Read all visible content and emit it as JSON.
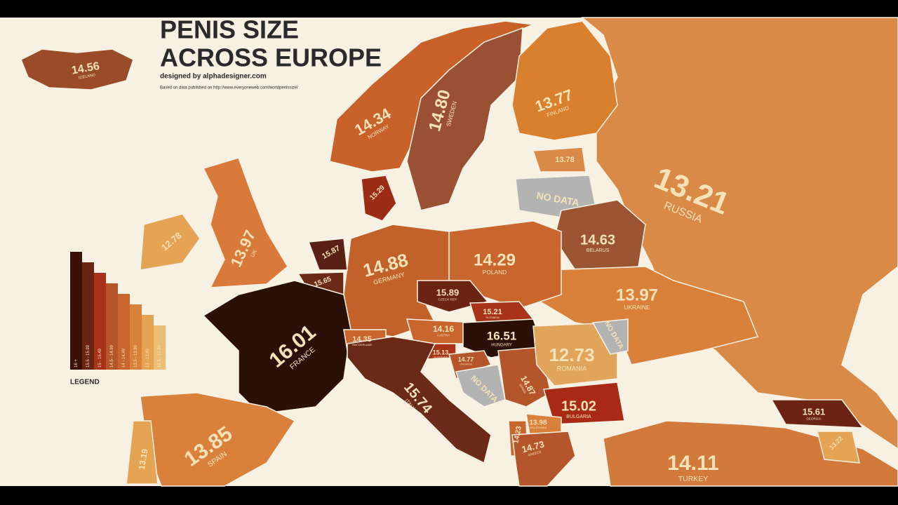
{
  "header": {
    "title_lines": [
      "PENIS SIZE",
      "ACROSS EUROPE"
    ],
    "credit": "designed by alphadesigner.com",
    "source": "Based on data published on http://www.everyoneweb.com/worldpenissize/"
  },
  "legend": {
    "title": "LEGEND",
    "bins": [
      {
        "label": "16 +",
        "color": "#3a1108"
      },
      {
        "label": "15.5 - 15.99",
        "color": "#6b2313"
      },
      {
        "label": "15 - 15.49",
        "color": "#a83319"
      },
      {
        "label": "14.5 - 14.99",
        "color": "#b5552c"
      },
      {
        "label": "14 - 14.49",
        "color": "#c8662e"
      },
      {
        "label": "13.5 - 13.99",
        "color": "#d9813a"
      },
      {
        "label": "13 - 13.49",
        "color": "#e5a354"
      },
      {
        "label": "12.5 - 12.99",
        "color": "#ecbd75"
      }
    ]
  },
  "countries": [
    {
      "value": "13.21",
      "name": "RUSSIA",
      "color": "#d98a47"
    },
    {
      "value": "14.56",
      "name": "ICELAND",
      "color": "#9a4b28"
    },
    {
      "value": "14.34",
      "name": "NORWAY",
      "color": "#c8622a"
    },
    {
      "value": "14.80",
      "name": "SWEDEN",
      "color": "#9a5032"
    },
    {
      "value": "13.77",
      "name": "FINLAND",
      "color": "#d9802f"
    },
    {
      "value": "13.78",
      "color": "#d98a47"
    },
    {
      "value": "NO DATA",
      "color": "#b3b3b3"
    },
    {
      "value": "14.63",
      "name": "BELARUS",
      "color": "#9b5532"
    },
    {
      "value": "13.97",
      "name": "UKRAINE",
      "color": "#d9813a"
    },
    {
      "value": "14.29",
      "name": "POLAND",
      "color": "#c8662e"
    },
    {
      "value": "14.88",
      "name": "GERMANY",
      "color": "#c2622a"
    },
    {
      "value": "15.29",
      "color": "#9b2c16"
    },
    {
      "value": "15.87",
      "color": "#5a2016"
    },
    {
      "value": "15.65",
      "color": "#6b2a18"
    },
    {
      "value": "13.97",
      "name": "UK",
      "color": "#d97a3a"
    },
    {
      "value": "12.78",
      "color": "#e5a354"
    },
    {
      "value": "16.01",
      "name": "FRANCE",
      "color": "#2a1008"
    },
    {
      "value": "14.35",
      "name": "SWITZERLAND",
      "color": "#c8662e"
    },
    {
      "value": "15.89",
      "name": "CZECH REP.",
      "color": "#6b2313"
    },
    {
      "value": "15.21",
      "name": "SLOVAKIA",
      "color": "#a83319"
    },
    {
      "value": "14.16",
      "name": "AUSTRIA",
      "color": "#c8662e"
    },
    {
      "value": "16.51",
      "name": "HUNGARY",
      "color": "#2a1008"
    },
    {
      "value": "15.13",
      "name": "SLOVENIA",
      "color": "#a83319"
    },
    {
      "value": "14.77",
      "name": "CROATIA",
      "color": "#b5552c"
    },
    {
      "value": "NO DATA",
      "color": "#b3b3b3"
    },
    {
      "value": "14.87",
      "name": "SERBIA",
      "color": "#b5552c"
    },
    {
      "value": "12.73",
      "name": "ROMANIA",
      "color": "#e0a45a"
    },
    {
      "value": "NO DATA",
      "color": "#b3b3b3"
    },
    {
      "value": "15.02",
      "name": "BULGARIA",
      "color": "#a82a14"
    },
    {
      "value": "15.74",
      "name": "ITALY",
      "color": "#6b2a18"
    },
    {
      "value": "13.85",
      "name": "SPAIN",
      "color": "#d9813a"
    },
    {
      "value": "13.19",
      "color": "#e5a354"
    },
    {
      "value": "13.98",
      "name": "MACEDONIA",
      "color": "#d9813a"
    },
    {
      "value": "14.23",
      "color": "#c8662e"
    },
    {
      "value": "14.73",
      "name": "GREECE",
      "color": "#b5552c"
    },
    {
      "value": "14.11",
      "name": "TURKEY",
      "color": "#d27a3c"
    },
    {
      "value": "15.61",
      "name": "GEORGIA",
      "color": "#6b2313"
    },
    {
      "value": "13.22",
      "color": "#e5a354"
    }
  ]
}
